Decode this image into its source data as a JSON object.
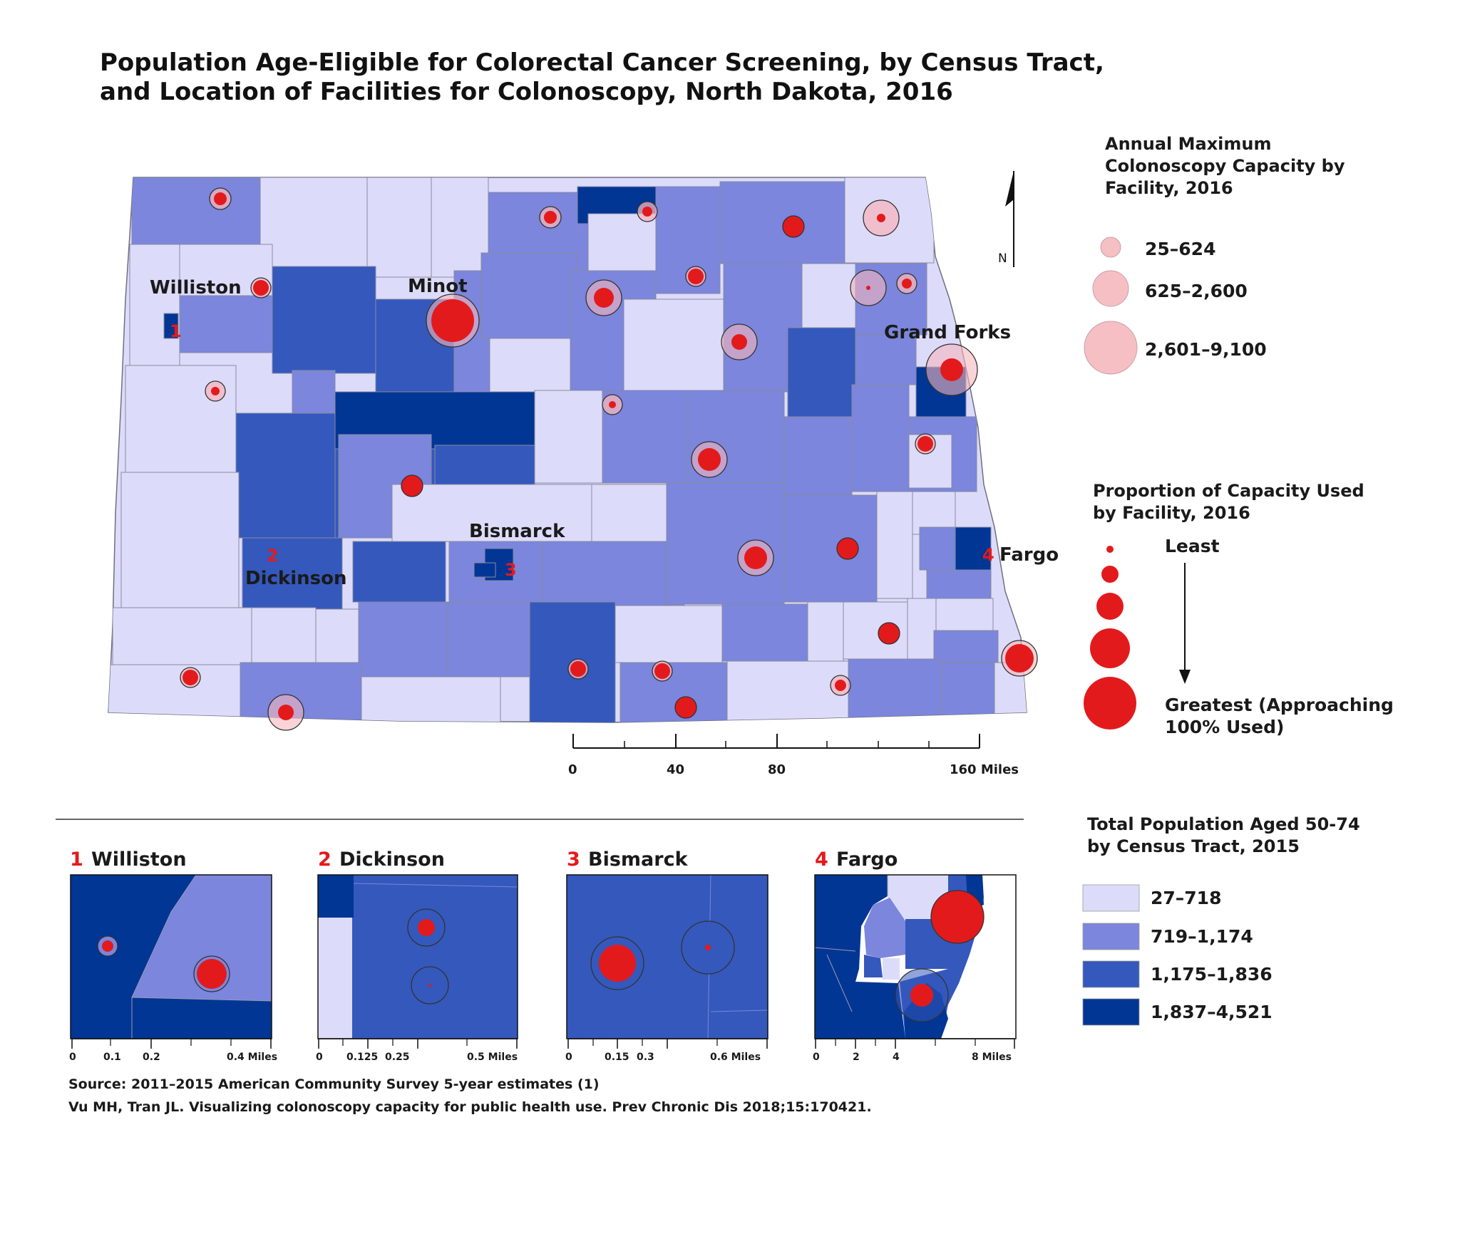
{
  "title": {
    "line1": "Population Age-Eligible for Colorectal Cancer Screening, by Census Tract,",
    "line2": "and Location of Facilities for Colonoscopy, North Dakota, 2016"
  },
  "north_arrow": "N",
  "cities": [
    {
      "name": "Williston",
      "num": "1"
    },
    {
      "name": "Minot",
      "num": ""
    },
    {
      "name": "Grand Forks",
      "num": ""
    },
    {
      "name": "Bismarck",
      "num": "3"
    },
    {
      "name": "Dickinson",
      "num": "2"
    },
    {
      "name": "Fargo",
      "num": "4"
    }
  ],
  "capacity_legend": {
    "title": [
      "Annual Maximum",
      "Colonoscopy Capacity by",
      "Facility, 2016"
    ],
    "classes": [
      "25–624",
      "625–2,600",
      "2,601–9,100"
    ]
  },
  "proportion_legend": {
    "title": [
      "Proportion of Capacity Used",
      "by Facility, 2016"
    ],
    "least": "Least",
    "greatest": [
      "Greatest (Approaching",
      "100% Used)"
    ]
  },
  "population_legend": {
    "title": [
      "Total Population Aged 50-74",
      "by Census Tract, 2015"
    ],
    "classes": [
      {
        "label": "27–718",
        "color": "#dcdcfa"
      },
      {
        "label": "719–1,174",
        "color": "#7b86dc"
      },
      {
        "label": "1,175–1,836",
        "color": "#3458bc"
      },
      {
        "label": "1,837–4,521",
        "color": "#013695"
      }
    ]
  },
  "facility_color": "#e31a1c",
  "main_scale": {
    "ticks": [
      "0",
      "40",
      "80",
      "160 Miles"
    ]
  },
  "insets": [
    {
      "num": "1",
      "name": "Williston",
      "scale": [
        "0",
        "0.1",
        "0.2",
        "0.4 Miles"
      ]
    },
    {
      "num": "2",
      "name": "Dickinson",
      "scale": [
        "0",
        "0.125",
        "0.25",
        "0.5 Miles"
      ]
    },
    {
      "num": "3",
      "name": "Bismarck",
      "scale": [
        "0",
        "0.15",
        "0.3",
        "0.6 Miles"
      ]
    },
    {
      "num": "4",
      "name": "Fargo",
      "scale": [
        "0",
        "2",
        "4",
        "8 Miles"
      ]
    }
  ],
  "source": {
    "line1": "Source: 2011–2015 American Community Survey 5-year estimates (1)",
    "line2": "Vu MH, Tran JL. Visualizing colonoscopy capacity for public health use. Prev Chronic Dis 2018;15:170421."
  }
}
